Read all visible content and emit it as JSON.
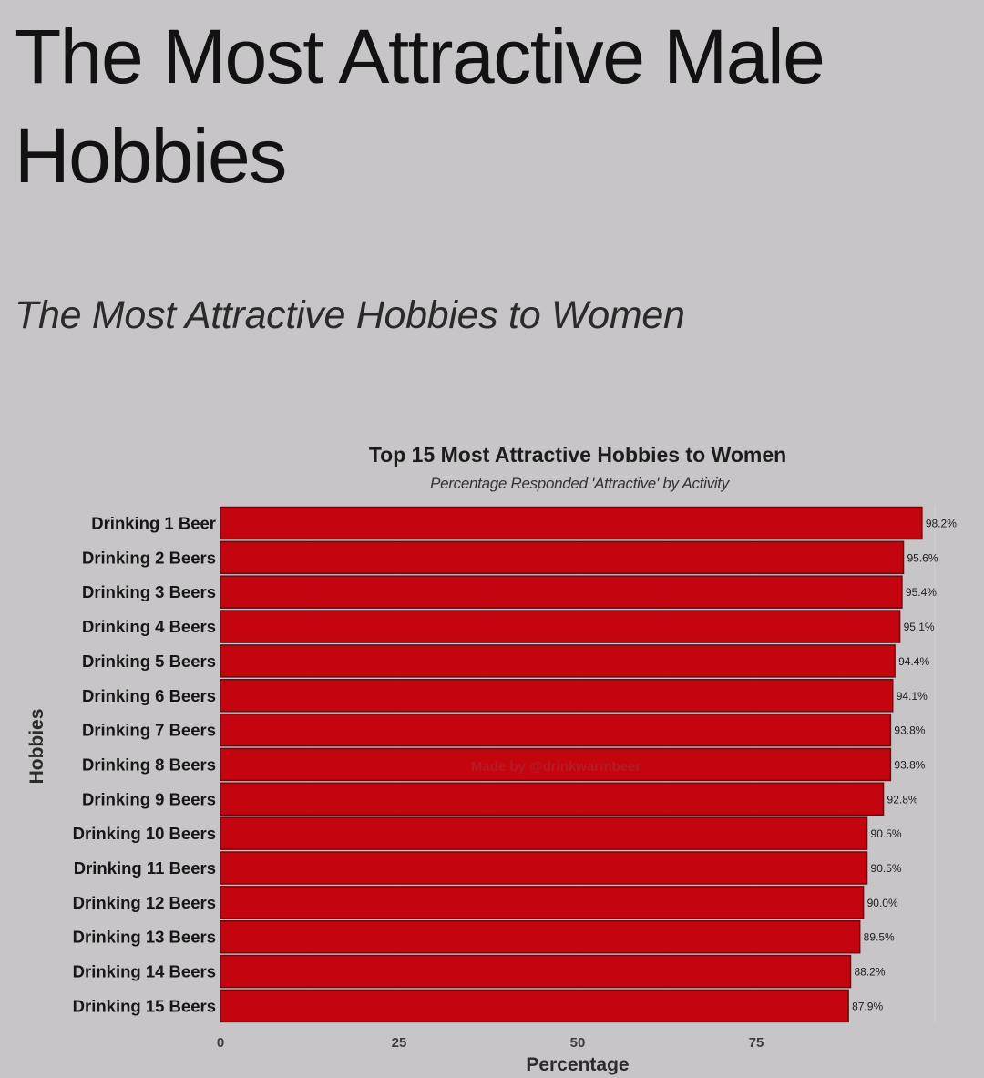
{
  "page": {
    "heading": "The Most Attractive Male Hobbies",
    "subheading": "The Most Attractive Hobbies to Women"
  },
  "colors": {
    "background": "#c7c5c7",
    "bar_fill": "#c4040f",
    "bar_stroke": "#6b0a0e"
  },
  "chart_data": {
    "type": "bar",
    "orientation": "horizontal",
    "title": "Top 15 Most Attractive Hobbies to Women",
    "subtitle": "Percentage Responded 'Attractive' by Activity",
    "xlabel": "Percentage",
    "ylabel": "Hobbies",
    "xlim": [
      0,
      100
    ],
    "x_ticks": [
      0,
      25,
      50,
      75
    ],
    "grid": true,
    "watermark": "Made by @drinkwarmbeer",
    "categories": [
      "Drinking 1 Beer",
      "Drinking 2 Beers",
      "Drinking 3 Beers",
      "Drinking 4 Beers",
      "Drinking 5 Beers",
      "Drinking 6 Beers",
      "Drinking 7 Beers",
      "Drinking 8 Beers",
      "Drinking 9 Beers",
      "Drinking 10 Beers",
      "Drinking 11 Beers",
      "Drinking 12 Beers",
      "Drinking 13 Beers",
      "Drinking 14 Beers",
      "Drinking 15 Beers"
    ],
    "values": [
      98.2,
      95.6,
      95.4,
      95.1,
      94.4,
      94.1,
      93.8,
      93.8,
      92.8,
      90.5,
      90.5,
      90.0,
      89.5,
      88.2,
      87.9
    ],
    "value_labels": [
      "98.2%",
      "95.6%",
      "95.4%",
      "95.1%",
      "94.4%",
      "94.1%",
      "93.8%",
      "93.8%",
      "92.8%",
      "90.5%",
      "90.5%",
      "90.0%",
      "89.5%",
      "88.2%",
      "87.9%"
    ]
  }
}
